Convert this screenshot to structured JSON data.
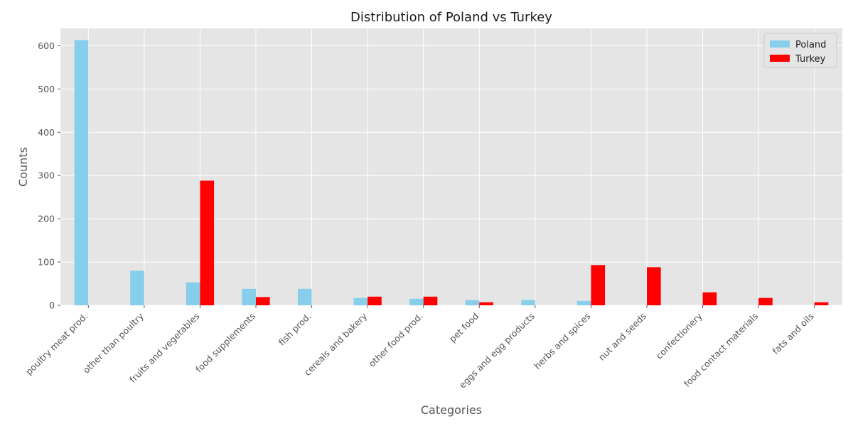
{
  "chart_data": {
    "type": "bar",
    "title": "Distribution of Poland vs Turkey",
    "xlabel": "Categories",
    "ylabel": "Counts",
    "ylim": [
      0,
      640
    ],
    "yticks": [
      0,
      100,
      200,
      300,
      400,
      500,
      600
    ],
    "categories": [
      "poultry meat prod.",
      "other than poultry",
      "fruits and vegetables",
      "food supplements",
      "fish prod.",
      "cereals and bakery",
      "other food prod.",
      "pet food",
      "eggs and egg products",
      "herbs and spices",
      "nut and seeds",
      "confectionery",
      "food contact materials",
      "fats and oils"
    ],
    "series": [
      {
        "name": "Poland",
        "color": "#87ceeb",
        "values": [
          613,
          80,
          53,
          38,
          38,
          17,
          15,
          12,
          12,
          10,
          0,
          0,
          0,
          0
        ]
      },
      {
        "name": "Turkey",
        "color": "#ff0000",
        "values": [
          0,
          0,
          288,
          19,
          0,
          20,
          20,
          7,
          0,
          93,
          88,
          30,
          17,
          7
        ]
      }
    ],
    "legend_position": "top-right",
    "grid": true,
    "background": "#e5e5e5"
  }
}
